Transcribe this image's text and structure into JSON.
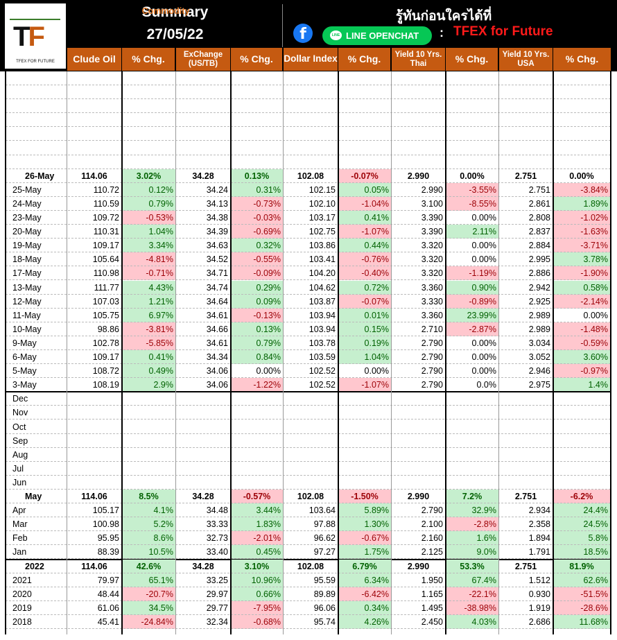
{
  "header": {
    "title_left": "Commodity",
    "title_right": "Summary",
    "date": "27/05/22",
    "thai_text": "รู้ทันก่อนใครได้ที่",
    "line_label": "LINE OPENCHAT",
    "colon": ":",
    "channel": "TFEX for Future",
    "facebook_icon": "f",
    "line_icon": "LINE"
  },
  "logo": {
    "mark": "TF",
    "subtitle": "TFEX FOR FUTURE"
  },
  "columns": {
    "crude": "Clude Oil",
    "pct1": "% Chg.",
    "fx": "ExChange (US/TB)",
    "pct2": "% Chg.",
    "dxy": "Dollar Index",
    "pct3": "% Chg.",
    "thai": "Yield 10 Yrs. Thai",
    "pct4": "% Chg.",
    "usa": "Yield 10 Yrs. USA",
    "pct5": "% Chg."
  },
  "daily": [
    [
      "26-May",
      "114.06",
      "3.02%",
      "34.28",
      "0.13%",
      "102.08",
      "-0.07%",
      "2.990",
      "0.00%",
      "2.751",
      "0.00%"
    ],
    [
      "25-May",
      "110.72",
      "0.12%",
      "34.24",
      "0.31%",
      "102.15",
      "0.05%",
      "2.990",
      "-3.55%",
      "2.751",
      "-3.84%"
    ],
    [
      "24-May",
      "110.59",
      "0.79%",
      "34.13",
      "-0.73%",
      "102.10",
      "-1.04%",
      "3.100",
      "-8.55%",
      "2.861",
      "1.89%"
    ],
    [
      "23-May",
      "109.72",
      "-0.53%",
      "34.38",
      "-0.03%",
      "103.17",
      "0.41%",
      "3.390",
      "0.00%",
      "2.808",
      "-1.02%"
    ],
    [
      "20-May",
      "110.31",
      "1.04%",
      "34.39",
      "-0.69%",
      "102.75",
      "-1.07%",
      "3.390",
      "2.11%",
      "2.837",
      "-1.63%"
    ],
    [
      "19-May",
      "109.17",
      "3.34%",
      "34.63",
      "0.32%",
      "103.86",
      "0.44%",
      "3.320",
      "0.00%",
      "2.884",
      "-3.71%"
    ],
    [
      "18-May",
      "105.64",
      "-4.81%",
      "34.52",
      "-0.55%",
      "103.41",
      "-0.76%",
      "3.320",
      "0.00%",
      "2.995",
      "3.78%"
    ],
    [
      "17-May",
      "110.98",
      "-0.71%",
      "34.71",
      "-0.09%",
      "104.20",
      "-0.40%",
      "3.320",
      "-1.19%",
      "2.886",
      "-1.90%"
    ],
    [
      "13-May",
      "111.77",
      "4.43%",
      "34.74",
      "0.29%",
      "104.62",
      "0.72%",
      "3.360",
      "0.90%",
      "2.942",
      "0.58%"
    ],
    [
      "12-May",
      "107.03",
      "1.21%",
      "34.64",
      "0.09%",
      "103.87",
      "-0.07%",
      "3.330",
      "-0.89%",
      "2.925",
      "-2.14%"
    ],
    [
      "11-May",
      "105.75",
      "6.97%",
      "34.61",
      "-0.13%",
      "103.94",
      "0.01%",
      "3.360",
      "23.99%",
      "2.989",
      "0.00%"
    ],
    [
      "10-May",
      "98.86",
      "-3.81%",
      "34.66",
      "0.13%",
      "103.94",
      "0.15%",
      "2.710",
      "-2.87%",
      "2.989",
      "-1.48%"
    ],
    [
      "9-May",
      "102.78",
      "-5.85%",
      "34.61",
      "0.79%",
      "103.78",
      "0.19%",
      "2.790",
      "0.00%",
      "3.034",
      "-0.59%"
    ],
    [
      "6-May",
      "109.17",
      "0.41%",
      "34.34",
      "0.84%",
      "103.59",
      "1.04%",
      "2.790",
      "0.00%",
      "3.052",
      "3.60%"
    ],
    [
      "5-May",
      "108.72",
      "0.49%",
      "34.06",
      "0.00%",
      "102.52",
      "0.00%",
      "2.790",
      "0.00%",
      "2.946",
      "-0.97%"
    ],
    [
      "3-May",
      "108.19",
      "2.9%",
      "34.06",
      "-1.22%",
      "102.52",
      "-1.07%",
      "2.790",
      "0.0%",
      "2.975",
      "1.4%"
    ]
  ],
  "months_empty": [
    "Dec",
    "Nov",
    "Oct",
    "Sep",
    "Aug",
    "Jul",
    "Jun"
  ],
  "monthly": [
    [
      "May",
      "114.06",
      "8.5%",
      "34.28",
      "-0.57%",
      "102.08",
      "-1.50%",
      "2.990",
      "7.2%",
      "2.751",
      "-6.2%"
    ],
    [
      "Apr",
      "105.17",
      "4.1%",
      "34.48",
      "3.44%",
      "103.64",
      "5.89%",
      "2.790",
      "32.9%",
      "2.934",
      "24.4%"
    ],
    [
      "Mar",
      "100.98",
      "5.2%",
      "33.33",
      "1.83%",
      "97.88",
      "1.30%",
      "2.100",
      "-2.8%",
      "2.358",
      "24.5%"
    ],
    [
      "Feb",
      "95.95",
      "8.6%",
      "32.73",
      "-2.01%",
      "96.62",
      "-0.67%",
      "2.160",
      "1.6%",
      "1.894",
      "5.8%"
    ],
    [
      "Jan",
      "88.39",
      "10.5%",
      "33.40",
      "0.45%",
      "97.27",
      "1.75%",
      "2.125",
      "9.0%",
      "1.791",
      "18.5%"
    ]
  ],
  "yearly": [
    [
      "2022",
      "114.06",
      "42.6%",
      "34.28",
      "3.10%",
      "102.08",
      "6.79%",
      "2.990",
      "53.3%",
      "2.751",
      "81.9%"
    ],
    [
      "2021",
      "79.97",
      "65.1%",
      "33.25",
      "10.96%",
      "95.59",
      "6.34%",
      "1.950",
      "67.4%",
      "1.512",
      "62.6%"
    ],
    [
      "2020",
      "48.44",
      "-20.7%",
      "29.97",
      "0.66%",
      "89.89",
      "-6.42%",
      "1.165",
      "-22.1%",
      "0.930",
      "-51.5%"
    ],
    [
      "2019",
      "61.06",
      "34.5%",
      "29.77",
      "-7.95%",
      "96.06",
      "0.34%",
      "1.495",
      "-38.98%",
      "1.919",
      "-28.6%"
    ],
    [
      "2018",
      "45.41",
      "-24.84%",
      "32.34",
      "-0.68%",
      "95.74",
      "4.26%",
      "2.450",
      "4.03%",
      "2.686",
      "11.68%"
    ]
  ],
  "colors": {
    "header_bg": "#000000",
    "col_header": "#c55a11",
    "pos_bg": "#c6efce",
    "neg_bg": "#ffc7ce",
    "line_green": "#06c755",
    "facebook": "#1877f2",
    "title_orange": "#e07a2a",
    "channel_red": "#ff1a1a"
  }
}
